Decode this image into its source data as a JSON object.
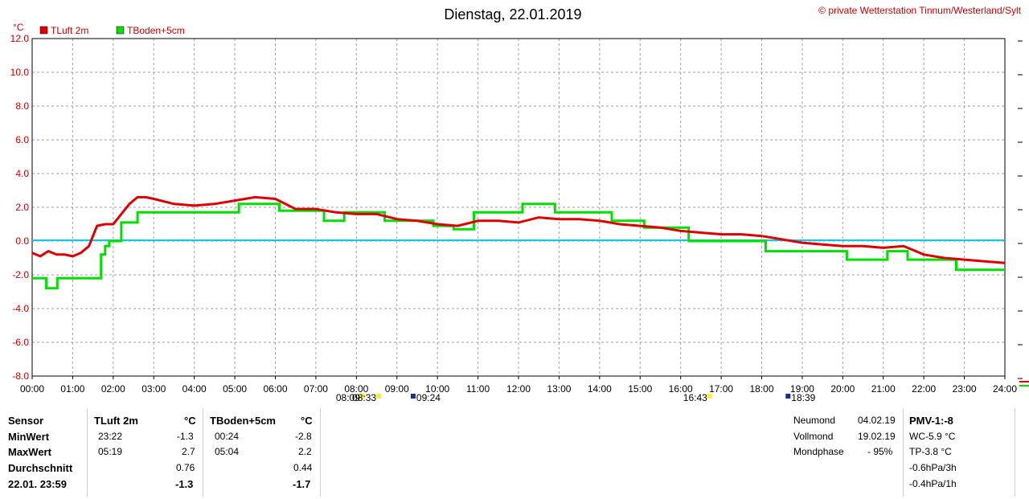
{
  "header": {
    "title": "Dienstag, 22.01.2019",
    "copyright": "© private Wetterstation Tinnum/Westerland/Sylt",
    "unit": "°C"
  },
  "colors": {
    "tluft": "#dd0000",
    "tboden": "#00e000",
    "zero": "#00ccee",
    "grid": "#a0a0a0",
    "frame": "#000000"
  },
  "chart_data": {
    "type": "line",
    "title": "Dienstag, 22.01.2019",
    "ylabel": "°C",
    "ylim": [
      -8,
      12
    ],
    "xlim": [
      "00:00",
      "24:00"
    ],
    "y_ticks": [
      "12.0",
      "10.0",
      "8.0",
      "6.0",
      "4.0",
      "2.0",
      "0.0",
      "-2.0",
      "-4.0",
      "-6.0",
      "-8.0"
    ],
    "x_ticks": [
      "00:00",
      "01:00",
      "02:00",
      "03:00",
      "04:00",
      "05:00",
      "06:00",
      "07:00",
      "08:00",
      "09:00",
      "10:00",
      "11:00",
      "12:00",
      "13:00",
      "14:00",
      "15:00",
      "16:00",
      "17:00",
      "18:00",
      "19:00",
      "20:00",
      "21:00",
      "22:00",
      "23:00",
      "24:00"
    ],
    "grid": true,
    "legend_position": "top-left",
    "series": [
      {
        "name": "TLuft 2m",
        "x_hours": [
          0,
          0.2,
          0.4,
          0.6,
          0.8,
          1,
          1.2,
          1.4,
          1.6,
          1.8,
          2,
          2.2,
          2.4,
          2.6,
          2.8,
          3,
          3.5,
          4,
          4.5,
          5,
          5.5,
          6,
          6.5,
          7,
          7.5,
          8,
          8.5,
          9,
          9.5,
          10,
          10.5,
          11,
          11.5,
          12,
          12.5,
          13,
          13.5,
          14,
          14.5,
          15,
          15.5,
          16,
          16.5,
          17,
          17.5,
          18,
          18.5,
          19,
          19.5,
          20,
          20.5,
          21,
          21.5,
          22,
          22.5,
          23,
          23.5,
          24
        ],
        "values": [
          -0.7,
          -0.9,
          -0.6,
          -0.8,
          -0.8,
          -0.9,
          -0.7,
          -0.3,
          0.9,
          1.0,
          1.0,
          1.6,
          2.2,
          2.6,
          2.6,
          2.5,
          2.2,
          2.1,
          2.2,
          2.4,
          2.6,
          2.5,
          1.9,
          1.9,
          1.7,
          1.6,
          1.6,
          1.3,
          1.2,
          1.0,
          0.9,
          1.2,
          1.2,
          1.1,
          1.4,
          1.3,
          1.3,
          1.2,
          1.0,
          0.9,
          0.8,
          0.6,
          0.5,
          0.4,
          0.4,
          0.3,
          0.1,
          -0.1,
          -0.2,
          -0.3,
          -0.3,
          -0.4,
          -0.3,
          -0.8,
          -1.0,
          -1.1,
          -1.2,
          -1.3
        ]
      },
      {
        "name": "TBoden+5cm",
        "x_hours": [
          0,
          0.3,
          0.35,
          0.6,
          0.62,
          1.6,
          1.7,
          1.8,
          1.9,
          2.0,
          2.1,
          2.2,
          2.3,
          2.6,
          2.9,
          3.0,
          5.0,
          5.1,
          6.0,
          6.1,
          7.1,
          7.2,
          7.6,
          7.7,
          8.6,
          8.7,
          9.8,
          9.9,
          10.3,
          10.4,
          10.8,
          10.9,
          11.0,
          12.0,
          12.1,
          12.8,
          12.9,
          14.2,
          14.3,
          15.0,
          15.1,
          16.0,
          16.2,
          16.3,
          18.0,
          18.1,
          19.5,
          19.6,
          20.0,
          20.1,
          21.0,
          21.1,
          21.5,
          21.6,
          22.5,
          22.7,
          22.8,
          24
        ],
        "values": [
          -2.2,
          -2.2,
          -2.8,
          -2.8,
          -2.2,
          -2.2,
          -0.8,
          -0.3,
          0.0,
          0.0,
          0.0,
          1.1,
          1.1,
          1.7,
          1.7,
          1.7,
          1.7,
          2.2,
          2.2,
          1.8,
          1.8,
          1.2,
          1.2,
          1.7,
          1.7,
          1.2,
          1.2,
          0.9,
          0.9,
          0.7,
          0.7,
          1.7,
          1.7,
          1.7,
          2.2,
          2.2,
          1.7,
          1.7,
          1.2,
          1.2,
          0.8,
          0.8,
          0.0,
          0.0,
          0.0,
          -0.6,
          -0.6,
          -0.6,
          -0.6,
          -1.1,
          -1.1,
          -0.6,
          -0.6,
          -1.1,
          -1.1,
          -1.1,
          -1.7,
          -1.7
        ]
      }
    ],
    "sun_moon_times": [
      "08:09",
      "08:33",
      "09:24",
      "16:43",
      "18:39"
    ]
  },
  "table": {
    "labels": {
      "sensor": "Sensor",
      "min": "MinWert",
      "max": "MaxWert",
      "avg": "Durchschnitt",
      "now": "22.01. 23:59"
    },
    "tluft": {
      "name": "TLuft 2m",
      "unit": "°C",
      "min_time": "23:22",
      "min_val": "-1.3",
      "max_time": "05:19",
      "max_val": "2.7",
      "avg": "0.76",
      "now": "-1.3"
    },
    "tboden": {
      "name": "TBoden+5cm",
      "unit": "°C",
      "min_time": "00:24",
      "min_val": "-2.8",
      "max_time": "05:04",
      "max_val": "2.2",
      "avg": "0.44",
      "now": "-1.7"
    }
  },
  "moon": {
    "neumond_label": "Neumond",
    "neumond_date": "04.02.19",
    "vollmond_label": "Vollmond",
    "vollmond_date": "19.02.19",
    "phase_label": "Mondphase",
    "phase_value": "- 95%"
  },
  "side": {
    "pmv": "PMV-1:-8",
    "wc": "WC-5.9 °C",
    "tp": "TP-3.8 °C",
    "p3h": "-0.6hPa/3h",
    "p1h": "-0.4hPa/1h"
  }
}
